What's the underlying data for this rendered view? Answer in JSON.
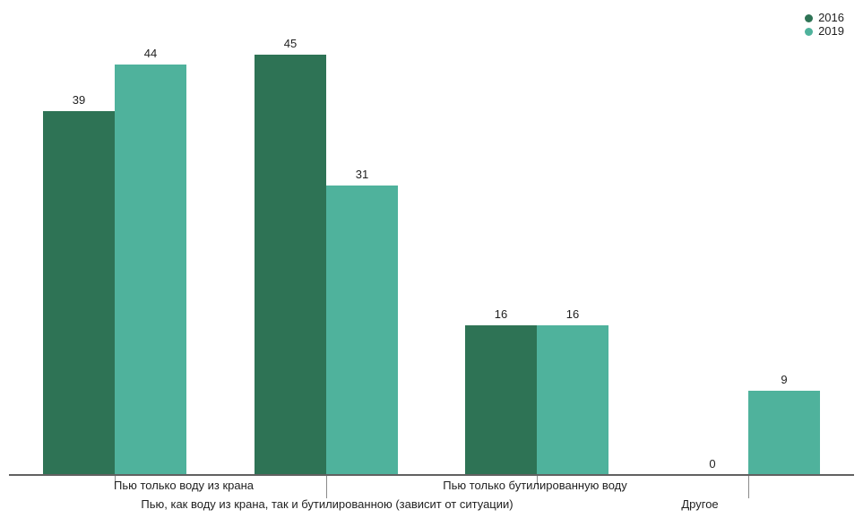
{
  "chart_data": {
    "type": "bar",
    "title": "",
    "xlabel": "",
    "ylabel": "",
    "categories": [
      "Пью только воду из крана",
      "Пью, как воду из крана, так и бутилированною (зависит от ситуации)",
      "Пью только бутилированную воду",
      "Другое"
    ],
    "series": [
      {
        "name": "2016",
        "color": "#2e7355",
        "values": [
          39,
          45,
          16,
          0
        ]
      },
      {
        "name": "2019",
        "color": "#4fb29c",
        "values": [
          44,
          31,
          16,
          9
        ]
      }
    ],
    "ylim": [
      0,
      48
    ],
    "grid": false,
    "y_axis_visible": false,
    "value_labels": true,
    "legend_position": "top-right",
    "x_label_layout": "staggered"
  },
  "colors": {
    "axis_line": "#616161",
    "tick": "#8a8a8a",
    "text": "#1f1f1f",
    "background": "#ffffff"
  }
}
